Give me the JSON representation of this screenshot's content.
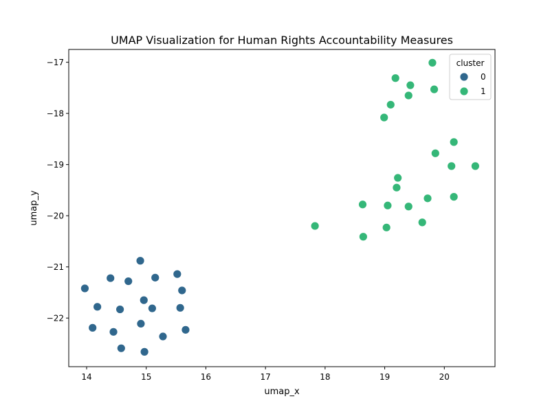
{
  "chart_data": {
    "type": "scatter",
    "title": "UMAP Visualization for Human Rights Accountability Measures",
    "xlabel": "umap_x",
    "ylabel": "umap_y",
    "xlim": [
      13.7,
      20.85
    ],
    "ylim": [
      -22.95,
      -16.75
    ],
    "xticks": [
      14,
      15,
      16,
      17,
      18,
      19,
      20
    ],
    "yticks": [
      -17,
      -18,
      -19,
      -20,
      -21,
      -22
    ],
    "grid": false,
    "legend": {
      "title": "cluster",
      "placement": "top-right",
      "entries": [
        {
          "label": "0",
          "color": "#30678d"
        },
        {
          "label": "1",
          "color": "#35b778"
        }
      ]
    },
    "series": [
      {
        "name": "0",
        "color": "#30678d",
        "points": [
          [
            14.9,
            -20.88
          ],
          [
            15.52,
            -21.14
          ],
          [
            14.4,
            -21.22
          ],
          [
            14.7,
            -21.28
          ],
          [
            15.15,
            -21.21
          ],
          [
            13.97,
            -21.42
          ],
          [
            15.6,
            -21.46
          ],
          [
            14.96,
            -21.65
          ],
          [
            14.18,
            -21.78
          ],
          [
            14.56,
            -21.83
          ],
          [
            15.1,
            -21.81
          ],
          [
            15.57,
            -21.8
          ],
          [
            14.91,
            -22.11
          ],
          [
            14.1,
            -22.19
          ],
          [
            14.45,
            -22.27
          ],
          [
            15.28,
            -22.36
          ],
          [
            15.66,
            -22.23
          ],
          [
            14.58,
            -22.59
          ],
          [
            14.97,
            -22.66
          ]
        ]
      },
      {
        "name": "1",
        "color": "#35b778",
        "points": [
          [
            19.8,
            -17.01
          ],
          [
            19.18,
            -17.31
          ],
          [
            19.43,
            -17.45
          ],
          [
            19.83,
            -17.53
          ],
          [
            19.4,
            -17.65
          ],
          [
            19.1,
            -17.83
          ],
          [
            18.99,
            -18.08
          ],
          [
            20.16,
            -18.56
          ],
          [
            19.85,
            -18.78
          ],
          [
            20.12,
            -19.03
          ],
          [
            20.52,
            -19.03
          ],
          [
            19.22,
            -19.26
          ],
          [
            19.2,
            -19.45
          ],
          [
            19.72,
            -19.66
          ],
          [
            20.16,
            -19.63
          ],
          [
            18.63,
            -19.78
          ],
          [
            19.05,
            -19.8
          ],
          [
            19.4,
            -19.82
          ],
          [
            19.63,
            -20.13
          ],
          [
            17.83,
            -20.2
          ],
          [
            19.03,
            -20.23
          ],
          [
            18.64,
            -20.41
          ]
        ]
      }
    ]
  }
}
